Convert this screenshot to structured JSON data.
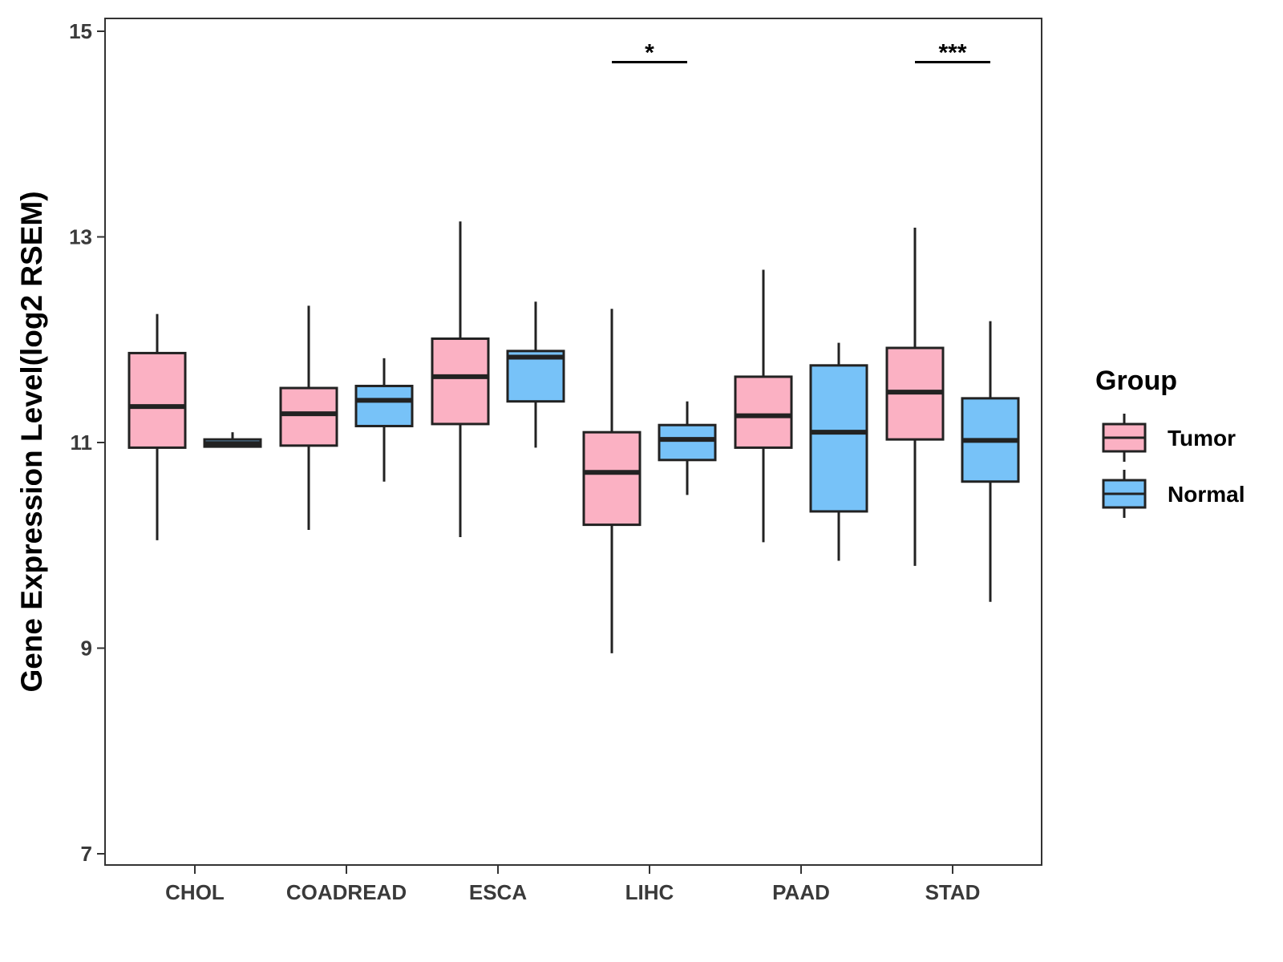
{
  "chart_data": {
    "type": "boxplot",
    "title": "",
    "xlabel": "",
    "ylabel": "Gene Expression Level(log2 RSEM)",
    "ylim": [
      7,
      15
    ],
    "yticks": [
      7,
      9,
      11,
      13,
      15
    ],
    "grid": false,
    "legend": {
      "title": "Group",
      "position": "right",
      "entries": [
        {
          "name": "Tumor",
          "color": "#FBB1C3"
        },
        {
          "name": "Normal",
          "color": "#77C2F8"
        }
      ]
    },
    "categories": [
      "CHOL",
      "COADREAD",
      "ESCA",
      "LIHC",
      "PAAD",
      "STAD"
    ],
    "series": [
      {
        "name": "Tumor",
        "color": "#FBB1C3",
        "boxes": [
          {
            "category": "CHOL",
            "whisker_low": 10.05,
            "q1": 10.95,
            "median": 11.35,
            "q3": 11.87,
            "whisker_high": 12.25
          },
          {
            "category": "COADREAD",
            "whisker_low": 10.15,
            "q1": 10.97,
            "median": 11.28,
            "q3": 11.53,
            "whisker_high": 12.33
          },
          {
            "category": "ESCA",
            "whisker_low": 10.08,
            "q1": 11.18,
            "median": 11.64,
            "q3": 12.01,
            "whisker_high": 13.15
          },
          {
            "category": "LIHC",
            "whisker_low": 8.95,
            "q1": 10.2,
            "median": 10.71,
            "q3": 11.1,
            "whisker_high": 12.3
          },
          {
            "category": "PAAD",
            "whisker_low": 10.03,
            "q1": 10.95,
            "median": 11.26,
            "q3": 11.64,
            "whisker_high": 12.68
          },
          {
            "category": "STAD",
            "whisker_low": 9.8,
            "q1": 11.03,
            "median": 11.49,
            "q3": 11.92,
            "whisker_high": 13.09
          }
        ]
      },
      {
        "name": "Normal",
        "color": "#77C2F8",
        "boxes": [
          {
            "category": "CHOL",
            "whisker_low": 10.95,
            "q1": 10.96,
            "median": 10.99,
            "q3": 11.03,
            "whisker_high": 11.1
          },
          {
            "category": "COADREAD",
            "whisker_low": 10.62,
            "q1": 11.16,
            "median": 11.41,
            "q3": 11.55,
            "whisker_high": 11.82
          },
          {
            "category": "ESCA",
            "whisker_low": 10.95,
            "q1": 11.4,
            "median": 11.83,
            "q3": 11.89,
            "whisker_high": 12.37
          },
          {
            "category": "LIHC",
            "whisker_low": 10.49,
            "q1": 10.83,
            "median": 11.03,
            "q3": 11.17,
            "whisker_high": 11.4
          },
          {
            "category": "PAAD",
            "whisker_low": 9.85,
            "q1": 10.33,
            "median": 11.1,
            "q3": 11.75,
            "whisker_high": 11.97
          },
          {
            "category": "STAD",
            "whisker_low": 9.45,
            "q1": 10.62,
            "median": 11.02,
            "q3": 11.43,
            "whisker_high": 12.18
          }
        ]
      }
    ],
    "annotations": [
      {
        "category": "LIHC",
        "label": "*",
        "y": 14.7
      },
      {
        "category": "STAD",
        "label": "***",
        "y": 14.7
      }
    ]
  }
}
